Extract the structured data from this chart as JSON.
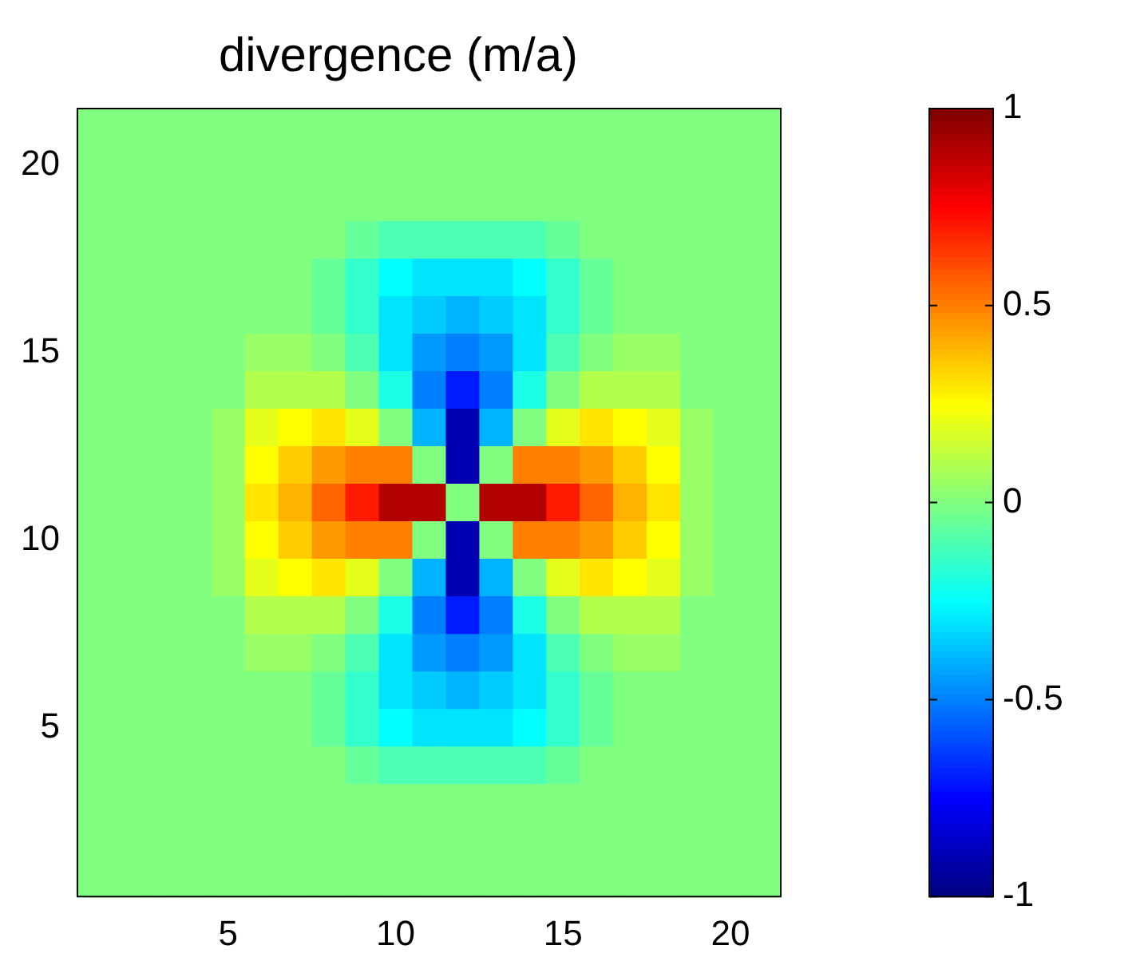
{
  "chart_data": {
    "type": "heatmap",
    "title": "divergence (m/a)",
    "categories": [
      null,
      null,
      null,
      null,
      "5",
      null,
      null,
      null,
      null,
      "10",
      null,
      null,
      null,
      null,
      "15",
      null,
      null,
      null,
      null,
      "20",
      null
    ],
    "y_categories": [
      null,
      "20",
      null,
      null,
      null,
      null,
      "15",
      null,
      null,
      null,
      null,
      "10",
      null,
      null,
      null,
      null,
      "5",
      null,
      null,
      null,
      null
    ],
    "cells": [
      [
        0,
        0,
        0,
        0,
        0,
        0,
        0,
        0,
        0,
        0,
        0,
        0,
        0,
        0,
        0,
        0,
        0,
        0,
        0,
        0,
        0
      ],
      [
        0,
        0,
        0,
        0,
        0,
        0,
        0,
        0,
        0,
        0,
        0,
        0,
        0,
        0,
        0,
        0,
        0,
        0,
        0,
        0,
        0
      ],
      [
        0,
        0,
        0,
        0,
        0,
        0,
        0,
        0,
        0,
        0,
        0,
        0,
        0,
        0,
        0,
        0,
        0,
        0,
        0,
        0,
        0
      ],
      [
        0,
        0,
        0,
        0,
        0,
        0,
        0,
        0,
        -0.05,
        -0.1,
        -0.1,
        -0.1,
        -0.1,
        -0.1,
        -0.05,
        0,
        0,
        0,
        0,
        0,
        0
      ],
      [
        0,
        0,
        0,
        0,
        0,
        0,
        0,
        -0.05,
        -0.15,
        -0.25,
        -0.3,
        -0.3,
        -0.3,
        -0.25,
        -0.15,
        -0.05,
        0,
        0,
        0,
        0,
        0
      ],
      [
        0,
        0,
        0,
        0,
        0,
        0,
        0,
        -0.05,
        -0.15,
        -0.3,
        -0.35,
        -0.4,
        -0.35,
        -0.3,
        -0.15,
        -0.05,
        0,
        0,
        0,
        0,
        0
      ],
      [
        0,
        0,
        0,
        0,
        0,
        0.05,
        0.05,
        0,
        -0.1,
        -0.3,
        -0.45,
        -0.5,
        -0.45,
        -0.3,
        -0.1,
        0,
        0.05,
        0.05,
        0,
        0,
        0
      ],
      [
        0,
        0,
        0,
        0,
        0,
        0.1,
        0.1,
        0.1,
        0,
        -0.2,
        -0.5,
        -0.7,
        -0.5,
        -0.2,
        0,
        0.1,
        0.1,
        0.1,
        0,
        0,
        0
      ],
      [
        0,
        0,
        0,
        0,
        0.05,
        0.2,
        0.25,
        0.3,
        0.2,
        0,
        -0.4,
        -0.9,
        -0.4,
        0,
        0.2,
        0.3,
        0.25,
        0.2,
        0.05,
        0,
        0
      ],
      [
        0,
        0,
        0,
        0,
        0.05,
        0.25,
        0.35,
        0.45,
        0.5,
        0.5,
        0,
        -0.9,
        0,
        0.5,
        0.5,
        0.45,
        0.35,
        0.25,
        0.05,
        0,
        0
      ],
      [
        0,
        0,
        0,
        0,
        0.05,
        0.3,
        0.4,
        0.55,
        0.7,
        0.9,
        0.9,
        0,
        0.9,
        0.9,
        0.7,
        0.55,
        0.4,
        0.3,
        0.05,
        0,
        0
      ],
      [
        0,
        0,
        0,
        0,
        0.05,
        0.25,
        0.35,
        0.45,
        0.5,
        0.5,
        0,
        -0.9,
        0,
        0.5,
        0.5,
        0.45,
        0.35,
        0.25,
        0.05,
        0,
        0
      ],
      [
        0,
        0,
        0,
        0,
        0.05,
        0.2,
        0.25,
        0.3,
        0.2,
        0,
        -0.4,
        -0.9,
        -0.4,
        0,
        0.2,
        0.3,
        0.25,
        0.2,
        0.05,
        0,
        0
      ],
      [
        0,
        0,
        0,
        0,
        0,
        0.1,
        0.1,
        0.1,
        0,
        -0.2,
        -0.5,
        -0.7,
        -0.5,
        -0.2,
        0,
        0.1,
        0.1,
        0.1,
        0,
        0,
        0
      ],
      [
        0,
        0,
        0,
        0,
        0,
        0.05,
        0.05,
        0,
        -0.1,
        -0.3,
        -0.45,
        -0.5,
        -0.45,
        -0.3,
        -0.1,
        0,
        0.05,
        0.05,
        0,
        0,
        0
      ],
      [
        0,
        0,
        0,
        0,
        0,
        0,
        0,
        -0.05,
        -0.15,
        -0.3,
        -0.35,
        -0.4,
        -0.35,
        -0.3,
        -0.15,
        -0.05,
        0,
        0,
        0,
        0,
        0
      ],
      [
        0,
        0,
        0,
        0,
        0,
        0,
        0,
        -0.05,
        -0.15,
        -0.25,
        -0.3,
        -0.3,
        -0.3,
        -0.25,
        -0.15,
        -0.05,
        0,
        0,
        0,
        0,
        0
      ],
      [
        0,
        0,
        0,
        0,
        0,
        0,
        0,
        0,
        -0.05,
        -0.1,
        -0.1,
        -0.1,
        -0.1,
        -0.1,
        -0.05,
        0,
        0,
        0,
        0,
        0,
        0
      ],
      [
        0,
        0,
        0,
        0,
        0,
        0,
        0,
        0,
        0,
        0,
        0,
        0,
        0,
        0,
        0,
        0,
        0,
        0,
        0,
        0,
        0
      ],
      [
        0,
        0,
        0,
        0,
        0,
        0,
        0,
        0,
        0,
        0,
        0,
        0,
        0,
        0,
        0,
        0,
        0,
        0,
        0,
        0,
        0
      ],
      [
        0,
        0,
        0,
        0,
        0,
        0,
        0,
        0,
        0,
        0,
        0,
        0,
        0,
        0,
        0,
        0,
        0,
        0,
        0,
        0,
        0
      ]
    ],
    "clim": [
      -1,
      1
    ],
    "cticks": [
      -1,
      -0.5,
      0,
      0.5,
      1
    ]
  }
}
